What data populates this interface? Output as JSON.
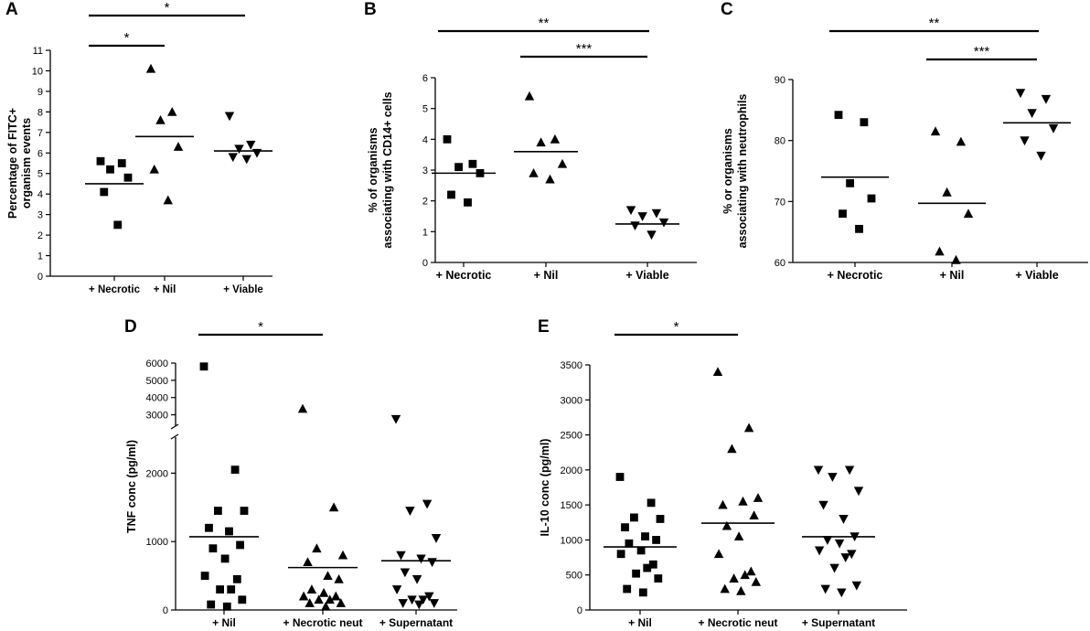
{
  "figure": {
    "colors": {
      "ink": "#000000",
      "background": "#ffffff"
    }
  },
  "chart_data": [
    {
      "panel": "A",
      "type": "scatter",
      "ylabel": [
        "Percentage of FITC+",
        "organism events"
      ],
      "categories": [
        "+ Necrotic",
        "+ Nil",
        "+ Viable"
      ],
      "markers": [
        "square",
        "triangle-up",
        "triangle-down"
      ],
      "ylim": [
        0,
        11
      ],
      "yticks": [
        0,
        1,
        2,
        3,
        4,
        5,
        6,
        7,
        8,
        9,
        10,
        11
      ],
      "series": [
        {
          "name": "+ Necrotic",
          "values": [
            5.6,
            5.5,
            5.2,
            4.8,
            4.1,
            2.5
          ],
          "mean": 4.5
        },
        {
          "name": "+ Nil",
          "values": [
            10.1,
            8.0,
            7.6,
            6.3,
            5.2,
            3.7
          ],
          "mean": 6.8
        },
        {
          "name": "+ Viable",
          "values": [
            7.8,
            6.4,
            6.2,
            6.0,
            5.8,
            5.7
          ],
          "mean": 6.1
        }
      ],
      "significance": [
        {
          "from": 0,
          "to": 2,
          "label": "*"
        },
        {
          "from": 0,
          "to": 1,
          "label": "*"
        }
      ]
    },
    {
      "panel": "B",
      "type": "scatter",
      "ylabel": [
        "% of organisms",
        "associating with CD14+ cells"
      ],
      "categories": [
        "+ Necrotic",
        "+ Nil",
        "+ Viable"
      ],
      "markers": [
        "square",
        "triangle-up",
        "triangle-down"
      ],
      "ylim": [
        0,
        6
      ],
      "yticks": [
        0,
        1,
        2,
        3,
        4,
        5,
        6
      ],
      "series": [
        {
          "name": "+ Necrotic",
          "values": [
            4.0,
            3.2,
            3.1,
            2.9,
            2.2,
            1.95
          ],
          "mean": 2.9
        },
        {
          "name": "+ Nil",
          "values": [
            5.4,
            4.0,
            3.9,
            3.2,
            2.9,
            2.7
          ],
          "mean": 3.6
        },
        {
          "name": "+ Viable",
          "values": [
            1.7,
            1.6,
            1.5,
            1.3,
            1.2,
            0.9
          ],
          "mean": 1.25
        }
      ],
      "significance": [
        {
          "from": 0,
          "to": 2,
          "label": "**"
        },
        {
          "from": 1,
          "to": 2,
          "label": "***"
        }
      ]
    },
    {
      "panel": "C",
      "type": "scatter",
      "ylabel": [
        "% or organisms",
        "associating with neutrophils"
      ],
      "categories": [
        "+ Necrotic",
        "+ Nil",
        "+ Viable"
      ],
      "markers": [
        "square",
        "triangle-up",
        "triangle-down"
      ],
      "ylim": [
        60,
        90
      ],
      "yticks": [
        60,
        70,
        80,
        90
      ],
      "series": [
        {
          "name": "+ Necrotic",
          "values": [
            84.2,
            83.0,
            73.0,
            70.5,
            68.0,
            65.5
          ],
          "mean": 74.0
        },
        {
          "name": "+ Nil",
          "values": [
            81.5,
            79.8,
            71.5,
            68.0,
            61.8,
            60.4
          ],
          "mean": 69.7
        },
        {
          "name": "+ Viable",
          "values": [
            87.8,
            86.8,
            84.5,
            82.0,
            80.0,
            77.5
          ],
          "mean": 82.9
        }
      ],
      "significance": [
        {
          "from": 0,
          "to": 2,
          "label": "**"
        },
        {
          "from": 1,
          "to": 2,
          "label": "***"
        }
      ]
    },
    {
      "panel": "D",
      "type": "scatter",
      "ylabel": [
        "TNF conc (pg/ml)"
      ],
      "categories": [
        "+ Nil",
        "+ Necrotic neut",
        "+ Supernatant"
      ],
      "markers": [
        "square",
        "triangle-up",
        "triangle-down"
      ],
      "axis_break": {
        "lower": [
          0,
          2500
        ],
        "upper": [
          2500,
          6000
        ]
      },
      "yticks_lower": [
        0,
        1000,
        2000
      ],
      "yticks_upper": [
        3000,
        4000,
        5000,
        6000
      ],
      "series": [
        {
          "name": "+ Nil",
          "values": [
            5800,
            2050,
            1450,
            1450,
            1200,
            1150,
            950,
            900,
            750,
            500,
            450,
            300,
            300,
            150,
            80,
            50
          ],
          "mean": 1070
        },
        {
          "name": "+ Necrotic neut",
          "values": [
            3350,
            1500,
            900,
            800,
            700,
            500,
            450,
            300,
            250,
            200,
            200,
            150,
            150,
            100,
            100,
            50
          ],
          "mean": 620
        },
        {
          "name": "+ Supernatant",
          "values": [
            2750,
            1550,
            1450,
            1050,
            800,
            750,
            700,
            550,
            450,
            300,
            200,
            150,
            150,
            100,
            100,
            80
          ],
          "mean": 720
        }
      ],
      "significance": [
        {
          "from": 0,
          "to": 1,
          "label": "*"
        }
      ]
    },
    {
      "panel": "E",
      "type": "scatter",
      "ylabel": [
        "IL-10 conc (pg/ml)"
      ],
      "categories": [
        "+ Nil",
        "+ Necrotic neut",
        "+ Supernatant"
      ],
      "markers": [
        "square",
        "triangle-up",
        "triangle-down"
      ],
      "ylim": [
        0,
        3500
      ],
      "yticks": [
        0,
        500,
        1000,
        1500,
        2000,
        2500,
        3000,
        3500
      ],
      "series": [
        {
          "name": "+ Nil",
          "values": [
            1900,
            1530,
            1320,
            1300,
            1180,
            1050,
            1000,
            950,
            850,
            800,
            650,
            600,
            520,
            450,
            300,
            250
          ],
          "mean": 900
        },
        {
          "name": "+ Necrotic neut",
          "values": [
            3400,
            2600,
            2300,
            1600,
            1500,
            1550,
            1350,
            1200,
            1050,
            800,
            550,
            500,
            450,
            400,
            300,
            270
          ],
          "mean": 1240
        },
        {
          "name": "+ Supernatant",
          "values": [
            2000,
            2000,
            1900,
            1700,
            1500,
            1300,
            1050,
            1000,
            950,
            850,
            800,
            750,
            600,
            350,
            300,
            250
          ],
          "mean": 1045
        }
      ],
      "significance": [
        {
          "from": 0,
          "to": 1,
          "label": "*"
        }
      ]
    }
  ]
}
